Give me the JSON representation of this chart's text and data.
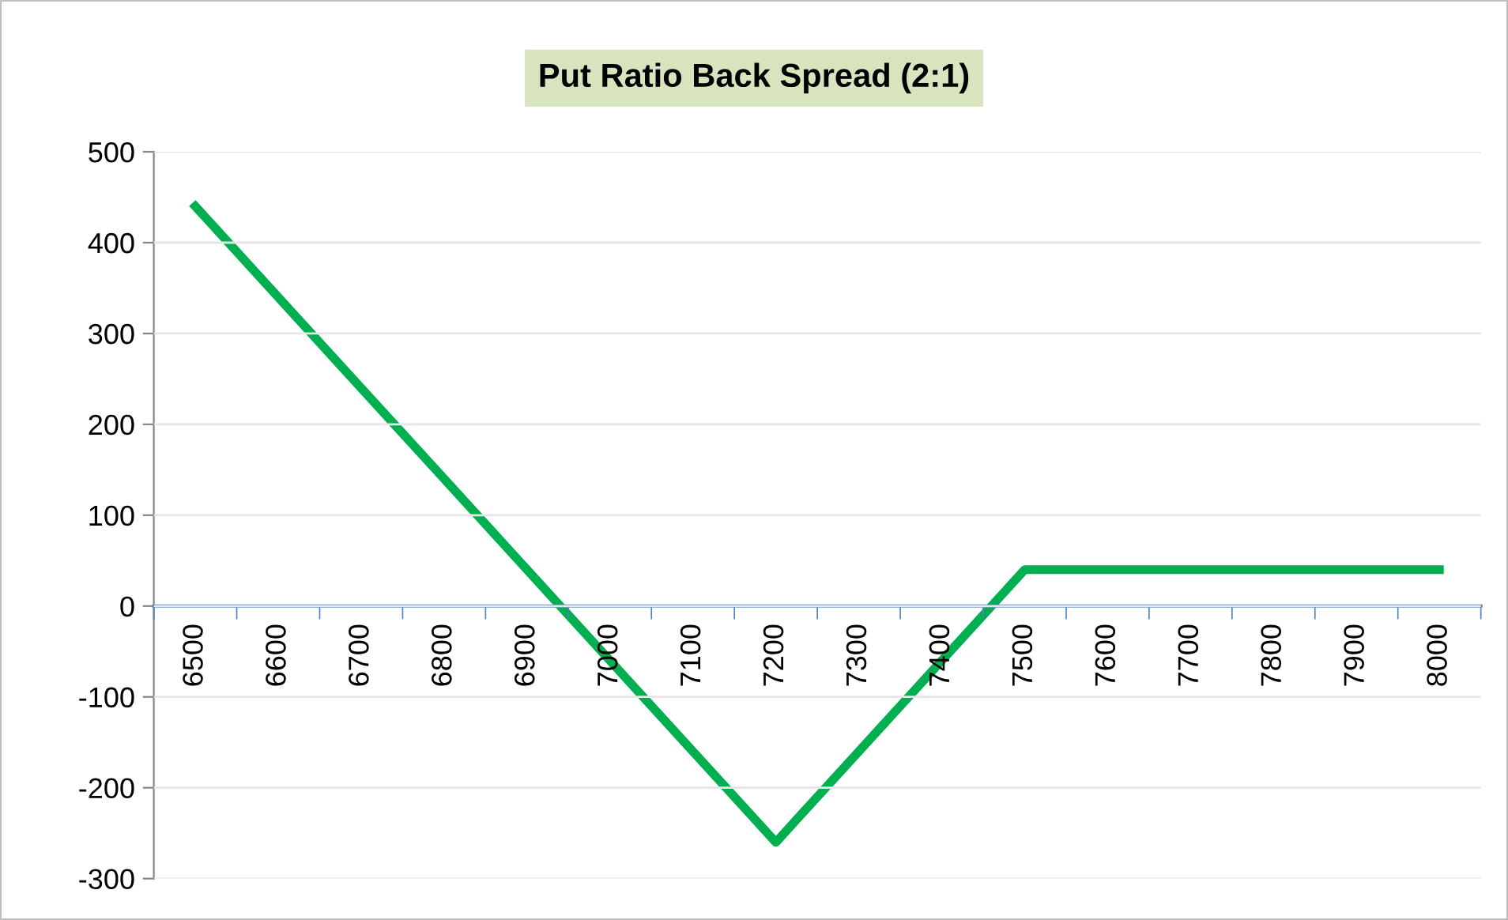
{
  "chart_data": {
    "type": "line",
    "title": "Put Ratio Back Spread (2:1)",
    "categories": [
      "6500",
      "6600",
      "6700",
      "6800",
      "6900",
      "7000",
      "7100",
      "7200",
      "7300",
      "7400",
      "7500",
      "7600",
      "7700",
      "7800",
      "7900",
      "8000"
    ],
    "series": [
      {
        "color": "#00b050",
        "values": [
          440,
          340,
          240,
          140,
          40,
          -60,
          -160,
          -260,
          -160,
          -60,
          40,
          40,
          40,
          40,
          40,
          40
        ]
      }
    ],
    "ylim": [
      -300,
      500
    ],
    "yticks": [
      -300,
      -200,
      -100,
      0,
      100,
      200,
      300,
      400,
      500
    ],
    "grid": "y",
    "marker": "none",
    "line_style": "solid"
  }
}
